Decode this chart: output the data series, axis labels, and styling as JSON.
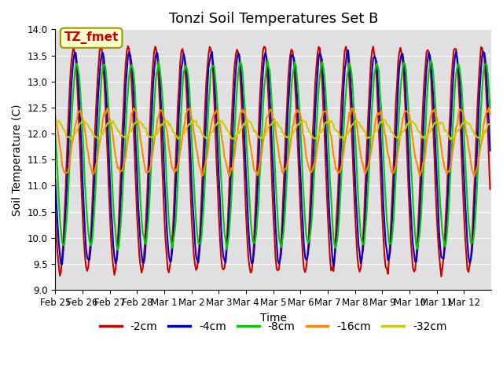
{
  "title": "Tonzi Soil Temperatures Set B",
  "xlabel": "Time",
  "ylabel": "Soil Temperature (C)",
  "ylim": [
    9.0,
    14.0
  ],
  "yticks": [
    9.0,
    9.5,
    10.0,
    10.5,
    11.0,
    11.5,
    12.0,
    12.5,
    13.0,
    13.5,
    14.0
  ],
  "x_tick_labels": [
    "Feb 25",
    "Feb 26",
    "Feb 27",
    "Feb 28",
    "Mar 1",
    "Mar 2",
    "Mar 3",
    "Mar 4",
    "Mar 5",
    "Mar 6",
    "Mar 7",
    "Mar 8",
    "Mar 9",
    "Mar 10",
    "Mar 11",
    "Mar 12"
  ],
  "n_days": 16,
  "pts_per_day": 24,
  "series_colors": [
    "#cc0000",
    "#0000cc",
    "#00cc00",
    "#ff8800",
    "#cccc00"
  ],
  "series_labels": [
    "-2cm",
    "-4cm",
    "-8cm",
    "-16cm",
    "-32cm"
  ],
  "background_color": "#e0e0e0",
  "annotation_text": "TZ_fmet",
  "annotation_color": "#cc0000",
  "annotation_bg": "#ffffcc",
  "annotation_edge": "#999900",
  "title_fontsize": 13,
  "axis_fontsize": 10,
  "tick_fontsize": 8.5,
  "legend_fontsize": 10,
  "line_width": 1.5
}
